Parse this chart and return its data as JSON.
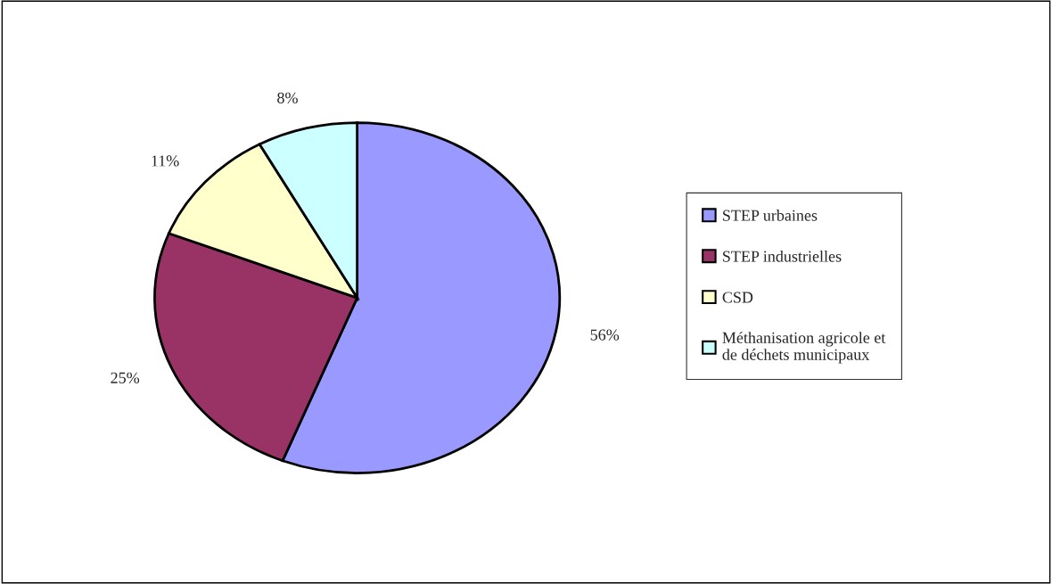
{
  "chart_data": {
    "type": "pie",
    "categories": [
      "STEP urbaines",
      "STEP industrielles",
      "CSD",
      "Méthanisation agricole et\nde déchets municipaux"
    ],
    "values": [
      56,
      25,
      11,
      8
    ],
    "colors": [
      "#9999ff",
      "#993366",
      "#ffffcc",
      "#ccffff"
    ],
    "value_labels": [
      "56%",
      "25%",
      "11%",
      "8%"
    ],
    "legend": "right"
  }
}
